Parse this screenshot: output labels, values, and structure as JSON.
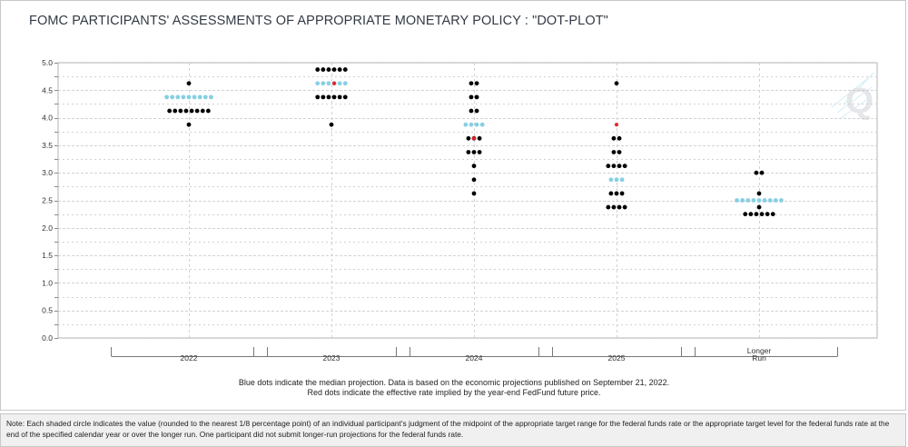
{
  "title": "FOMC PARTICIPANTS' ASSESSMENTS OF APPROPRIATE MONETARY POLICY : \"DOT-PLOT\"",
  "colors": {
    "median": "#87cfe3",
    "implied": "#e8232a",
    "participant": "#000000",
    "grid": "#d2d2d2",
    "axis_text": "#333333"
  },
  "chart_data": {
    "type": "scatter",
    "subtype": "dot-plot",
    "title": "FOMC PARTICIPANTS' ASSESSMENTS OF APPROPRIATE MONETARY POLICY : \"DOT-PLOT\"",
    "ylim": [
      0,
      5.0
    ],
    "yticks": [
      "0.0",
      "0.5",
      "1.0",
      "1.5",
      "2.0",
      "2.5",
      "3.0",
      "3.5",
      "4.0",
      "4.5",
      "5.0"
    ],
    "grid": true,
    "categories": [
      "2022",
      "2023",
      "2024",
      "2025",
      "Longer Run"
    ],
    "category_labels": [
      [
        "2022"
      ],
      [
        "2023"
      ],
      [
        "2024"
      ],
      [
        "2025"
      ],
      [
        "Longer",
        "Run"
      ]
    ],
    "dots": [
      {
        "category": "2022",
        "levels": [
          {
            "rate": 4.625,
            "participant": 1,
            "median": 0
          },
          {
            "rate": 4.375,
            "participant": 0,
            "median": 9
          },
          {
            "rate": 4.125,
            "participant": 8,
            "median": 0
          },
          {
            "rate": 3.875,
            "participant": 1,
            "median": 0
          }
        ]
      },
      {
        "category": "2023",
        "levels": [
          {
            "rate": 4.875,
            "participant": 6,
            "median": 0
          },
          {
            "rate": 4.625,
            "participant": 0,
            "median": 6,
            "implied": true
          },
          {
            "rate": 4.375,
            "participant": 6,
            "median": 0
          },
          {
            "rate": 3.875,
            "participant": 1,
            "median": 0
          }
        ]
      },
      {
        "category": "2024",
        "levels": [
          {
            "rate": 4.625,
            "participant": 2,
            "median": 0
          },
          {
            "rate": 4.375,
            "participant": 2,
            "median": 0
          },
          {
            "rate": 4.125,
            "participant": 2,
            "median": 0
          },
          {
            "rate": 3.875,
            "participant": 0,
            "median": 4
          },
          {
            "rate": 3.625,
            "participant": 3,
            "median": 0,
            "implied": true
          },
          {
            "rate": 3.375,
            "participant": 3,
            "median": 0
          },
          {
            "rate": 3.125,
            "participant": 1,
            "median": 0
          },
          {
            "rate": 2.875,
            "participant": 1,
            "median": 0
          },
          {
            "rate": 2.625,
            "participant": 1,
            "median": 0
          }
        ]
      },
      {
        "category": "2025",
        "levels": [
          {
            "rate": 4.625,
            "participant": 1,
            "median": 0
          },
          {
            "rate": 3.875,
            "participant": 0,
            "median": 0,
            "implied": true
          },
          {
            "rate": 3.625,
            "participant": 2,
            "median": 0
          },
          {
            "rate": 3.375,
            "participant": 2,
            "median": 0
          },
          {
            "rate": 3.125,
            "participant": 4,
            "median": 0
          },
          {
            "rate": 2.875,
            "participant": 0,
            "median": 3
          },
          {
            "rate": 2.625,
            "participant": 3,
            "median": 0
          },
          {
            "rate": 2.375,
            "participant": 4,
            "median": 0
          }
        ]
      },
      {
        "category": "Longer Run",
        "levels": [
          {
            "rate": 3.0,
            "participant": 2,
            "median": 0
          },
          {
            "rate": 2.625,
            "participant": 1,
            "median": 0
          },
          {
            "rate": 2.5,
            "participant": 0,
            "median": 9
          },
          {
            "rate": 2.375,
            "participant": 1,
            "median": 0
          },
          {
            "rate": 2.25,
            "participant": 6,
            "median": 0
          }
        ]
      }
    ]
  },
  "captions": {
    "line1": "Blue dots indicate the median projection. Data is based on the economic projections published on September 21, 2022.",
    "line2": "Red dots indicate the effective rate implied by the year-end FedFund future price."
  },
  "note": "Note: Each shaded circle indicates the value (rounded to the nearest 1/8 percentage point) of an individual participant's judgment of the midpoint of the appropriate target range for the federal funds rate or the appropriate target level for the federal funds rate at the end of the specified calendar year or over the longer run. One participant did not submit longer-run projections for the federal funds rate.",
  "watermark": "Q"
}
